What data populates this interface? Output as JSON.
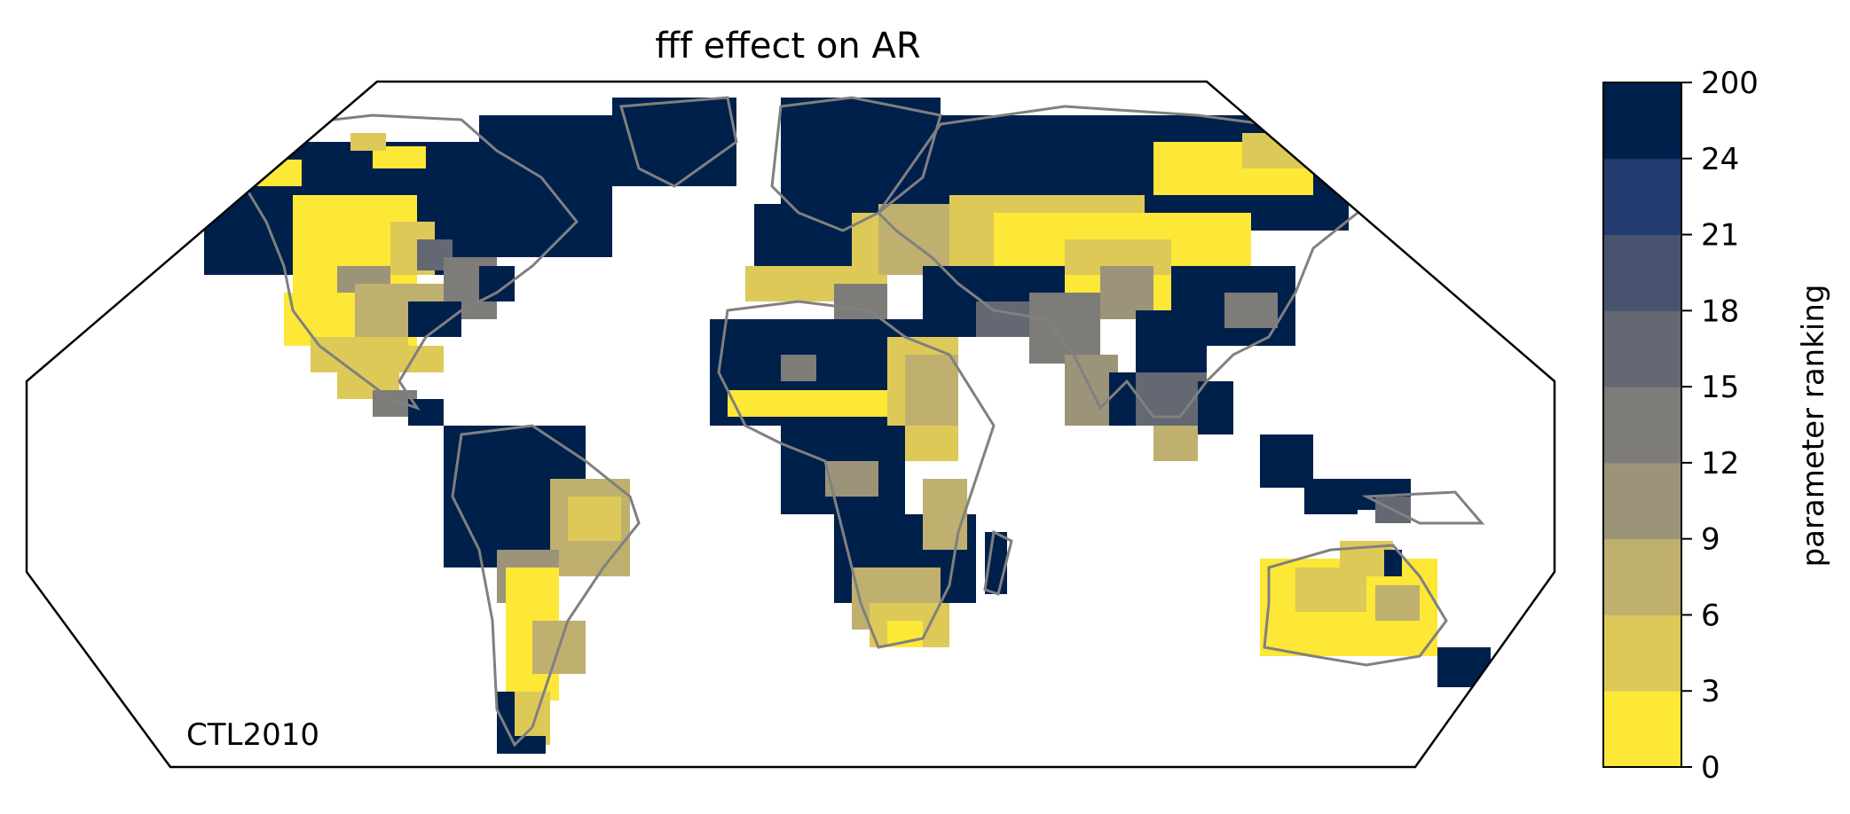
{
  "title": "fff effect on AR",
  "experiment_label": "CTL2010",
  "colorbar": {
    "label": "parameter ranking",
    "ticks": [
      "0",
      "3",
      "6",
      "9",
      "12",
      "15",
      "18",
      "21",
      "24",
      "200"
    ],
    "colors": [
      "#fde737",
      "#ddc958",
      "#bfb06f",
      "#9c9478",
      "#7d7c78",
      "#646872",
      "#485370",
      "#233c6f",
      "#00204c"
    ]
  },
  "map": {
    "projection": "robinson",
    "ocean_color": "#ffffff",
    "coastline_color": "#808080",
    "frame_color": "#000000"
  }
}
